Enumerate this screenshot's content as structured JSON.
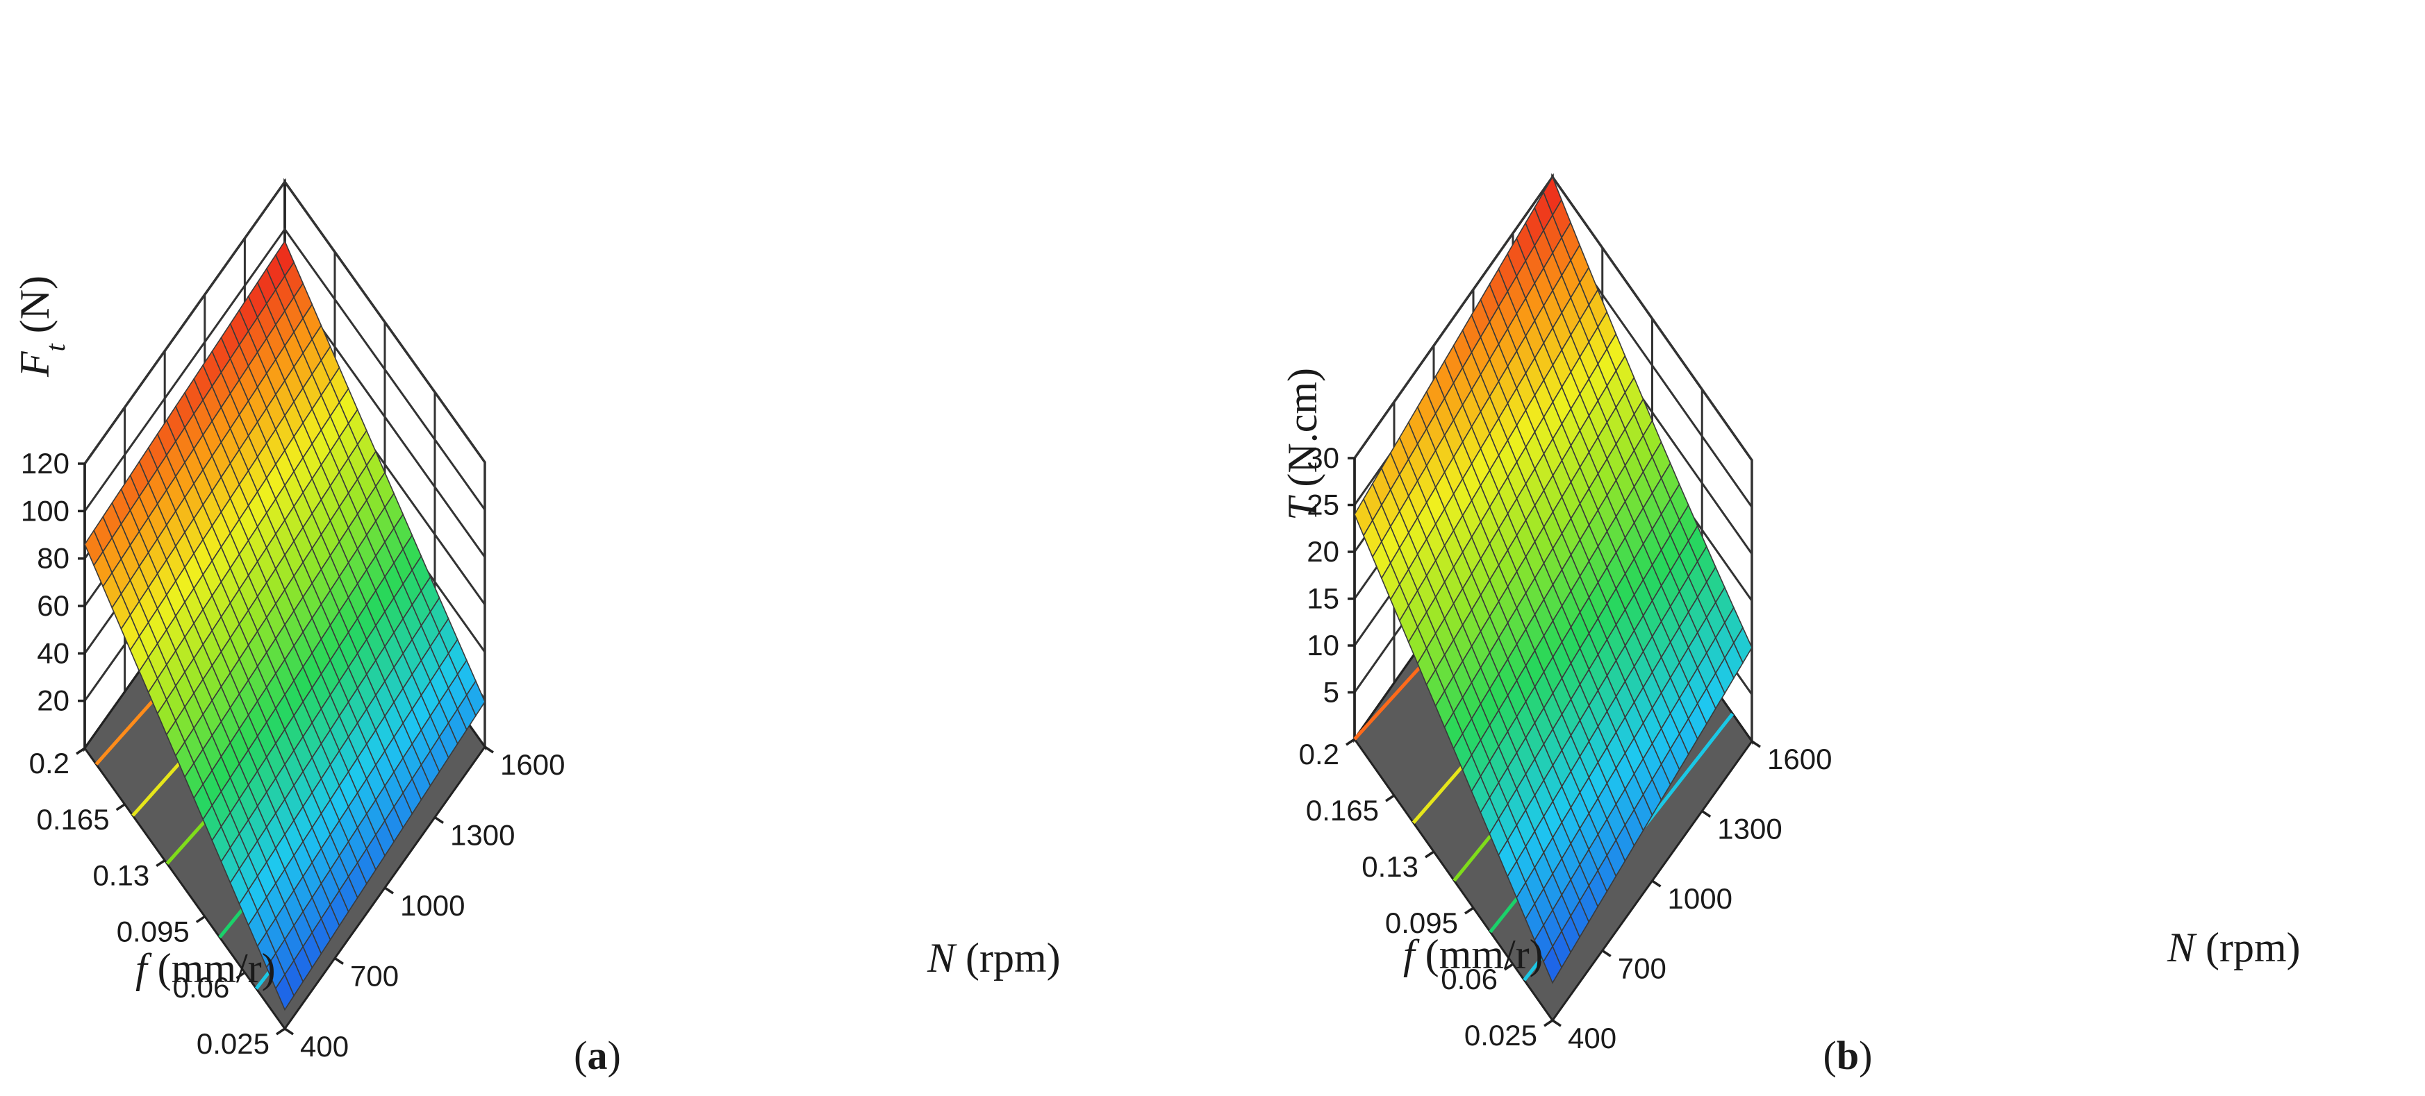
{
  "chart_data": [
    {
      "type": "surface3d",
      "panel": "a",
      "caption_open": "(",
      "caption_letter": "a",
      "caption_close": ")",
      "zlabel_var": "F",
      "zlabel_sub": "t",
      "zlabel_unit": " (N)",
      "flabel_var": "f",
      "flabel_unit": " (mm/r)",
      "nlabel_var": "N",
      "nlabel_unit": " (rpm)",
      "zticks": [
        "20",
        "40",
        "60",
        "80",
        "100",
        "120"
      ],
      "zlim": [
        0,
        120
      ],
      "fticks": [
        "0.2",
        "0.165",
        "0.13",
        "0.095",
        "0.06",
        "0.025"
      ],
      "nticks": [
        "400",
        "700",
        "1000",
        "1300",
        "1600"
      ],
      "surface_corners": {
        "f_max_N_min": 86,
        "f_max_N_max": 95,
        "f_min_N_max": 19,
        "f_min_N_min": 8
      },
      "contours": [
        {
          "f_at_N_min": 0.19,
          "f_at_N_max": 0.17,
          "color": "#ff8c1a"
        },
        {
          "f_at_N_min": 0.158,
          "f_at_N_max": 0.138,
          "color": "#e6e61a"
        },
        {
          "f_at_N_min": 0.128,
          "f_at_N_max": 0.108,
          "color": "#7fdd1a"
        },
        {
          "f_at_N_min": 0.082,
          "f_at_N_max": 0.07,
          "color": "#1ad26a"
        },
        {
          "f_at_N_min": 0.05,
          "f_at_N_max": 0.042,
          "color": "#1ac8e6"
        }
      ]
    },
    {
      "type": "surface3d",
      "panel": "b",
      "caption_open": "(",
      "caption_letter": "b",
      "caption_close": ")",
      "zlabel_var": "T",
      "zlabel_sub": "",
      "zlabel_unit": " (N.cm)",
      "flabel_var": "f",
      "flabel_unit": " (mm/r)",
      "nlabel_var": "N",
      "nlabel_unit": " (rpm)",
      "zticks": [
        "5",
        "10",
        "15",
        "20",
        "25",
        "30"
      ],
      "zlim": [
        0,
        30
      ],
      "fticks": [
        "0.2",
        "0.165",
        "0.13",
        "0.095",
        "0.06",
        "0.025"
      ],
      "nticks": [
        "400",
        "700",
        "1000",
        "1300",
        "1600"
      ],
      "surface_corners": {
        "f_max_N_min": 24,
        "f_max_N_max": 30,
        "f_min_N_max": 10,
        "f_min_N_min": 4
      },
      "contours": [
        {
          "f_at_N_min": 0.2,
          "f_at_N_max": 0.178,
          "color": "#ff6a1a"
        },
        {
          "f_at_N_min": 0.148,
          "f_at_N_max": 0.13,
          "color": "#e6e61a"
        },
        {
          "f_at_N_min": 0.112,
          "f_at_N_max": 0.1,
          "color": "#7fdd1a"
        },
        {
          "f_at_N_min": 0.08,
          "f_at_N_max": 0.07,
          "color": "#1ad26a"
        },
        {
          "f_at_N_min": 0.05,
          "f_at_N_max": 0.042,
          "color": "#1ac8e6"
        }
      ]
    }
  ]
}
